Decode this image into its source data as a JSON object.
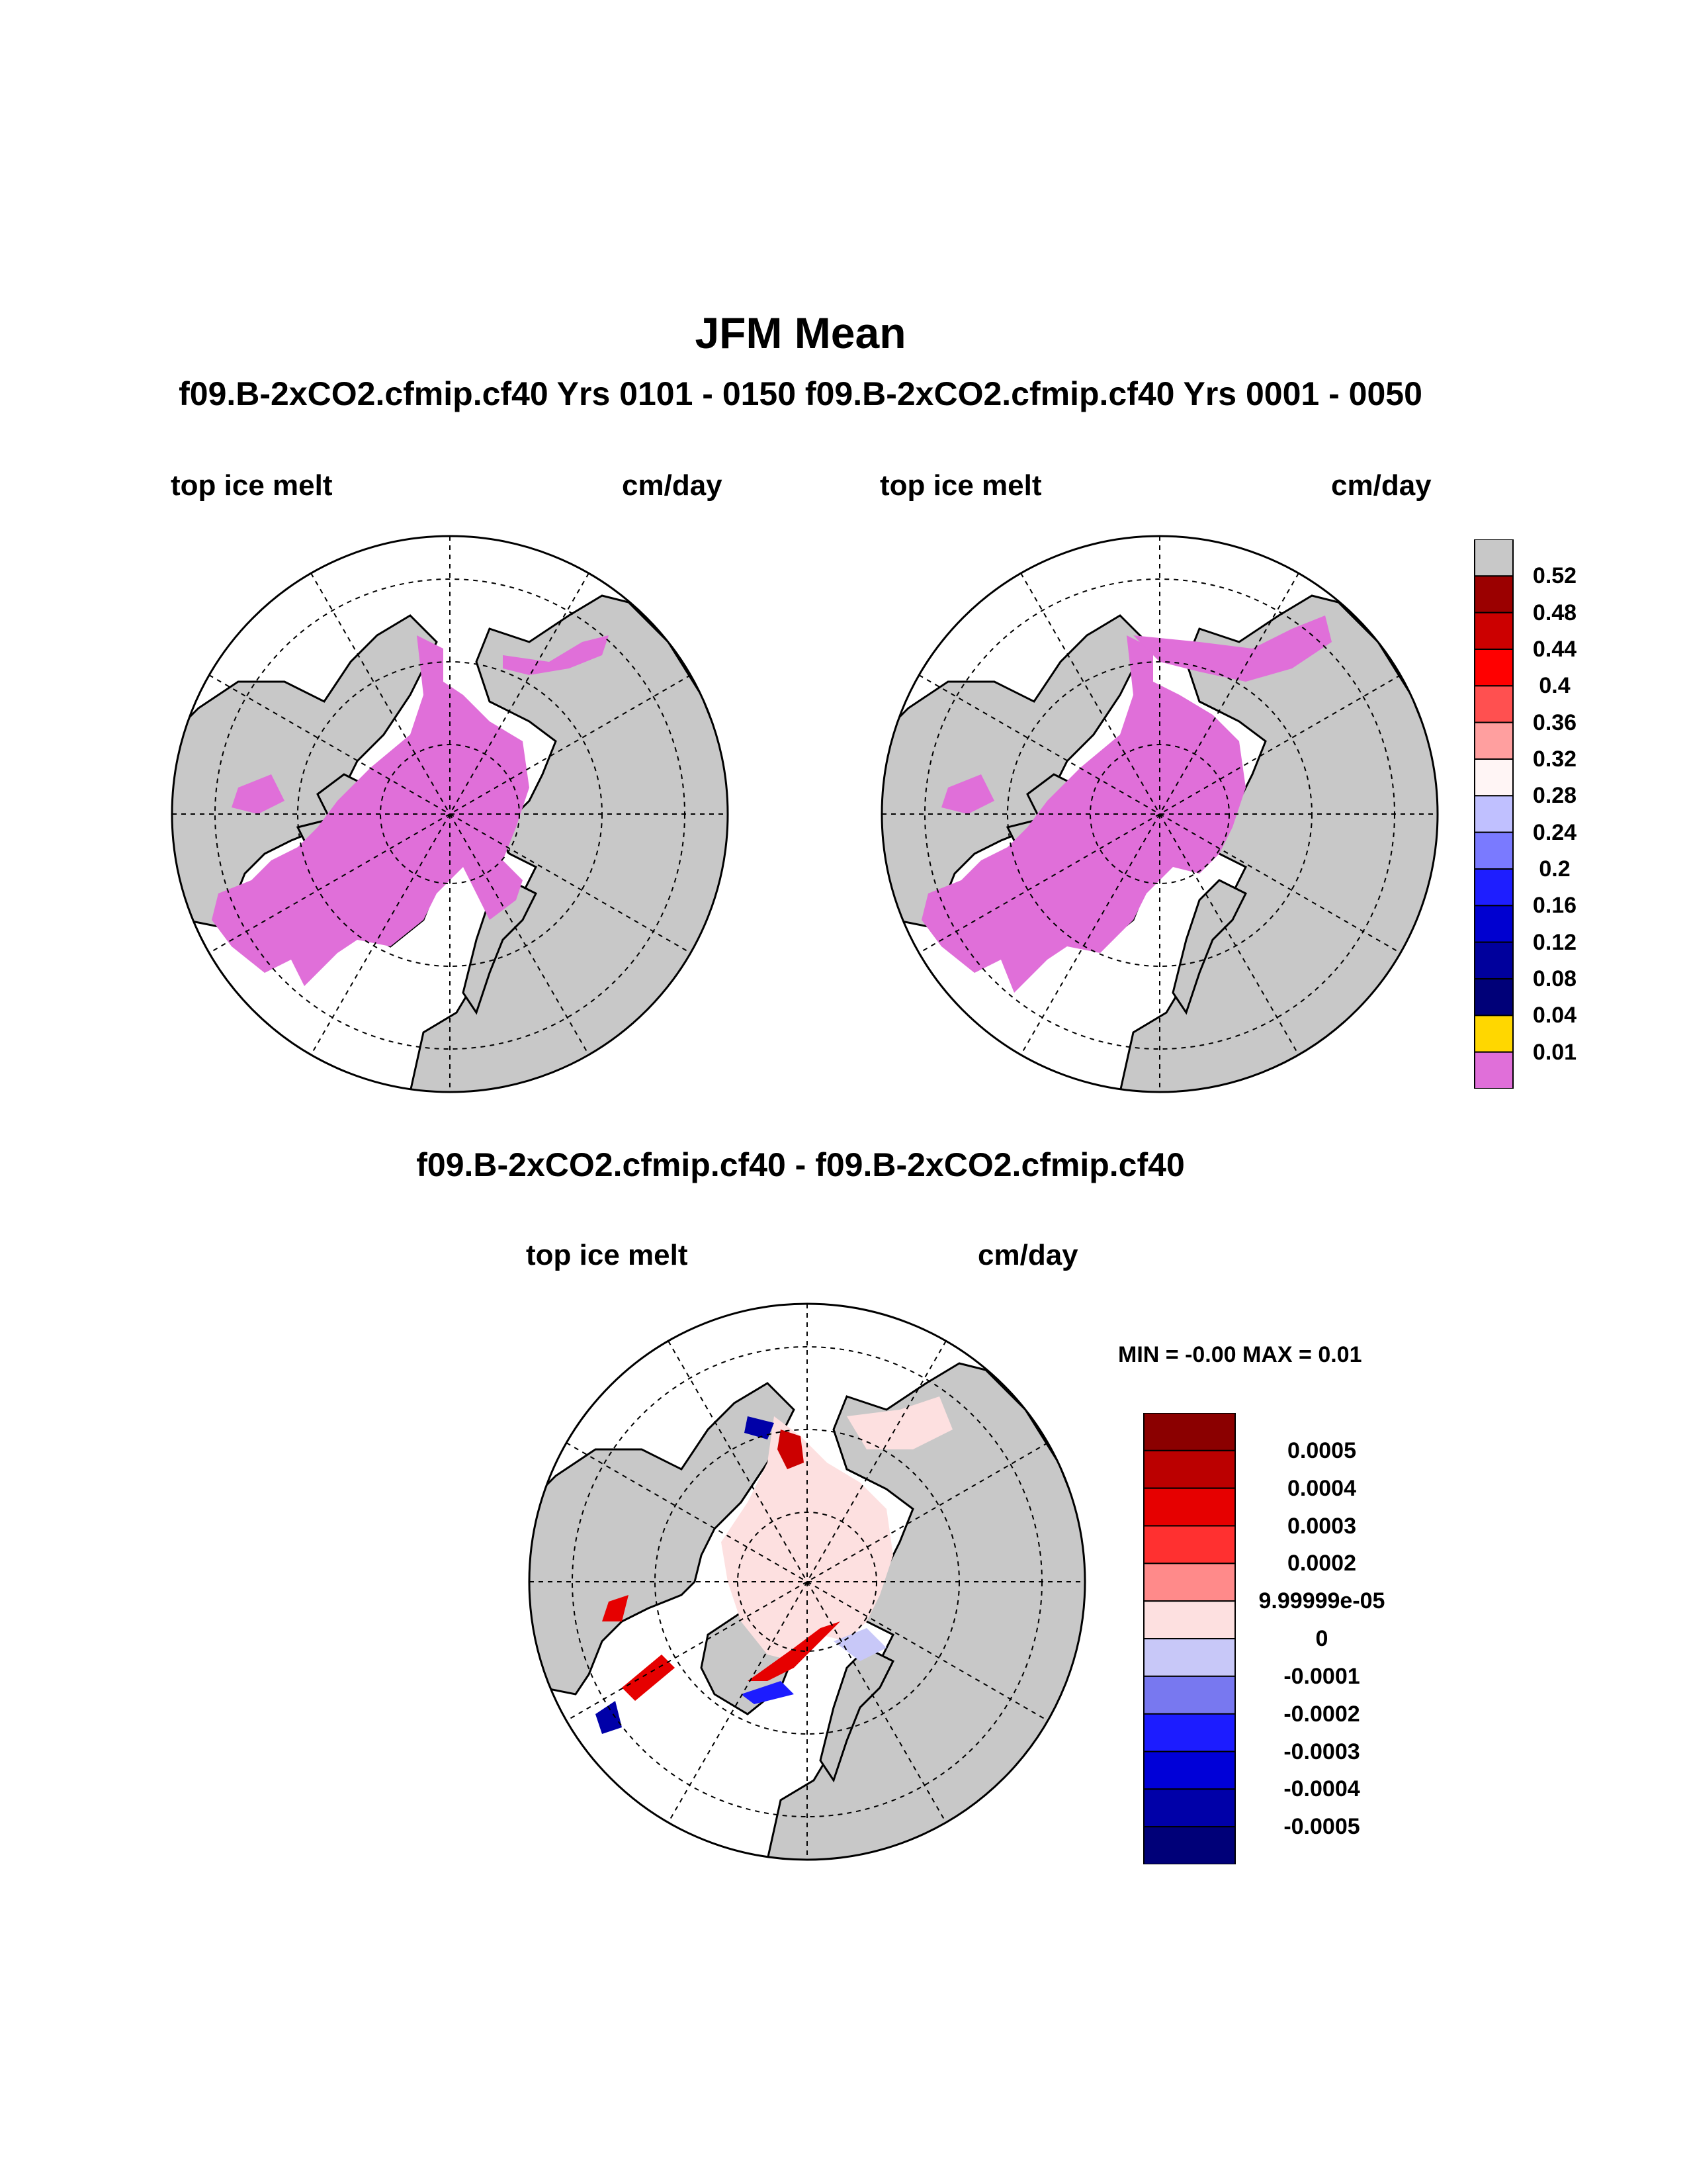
{
  "title": "JFM Mean",
  "subtitle": "f09.B-2xCO2.cfmip.cf40  Yrs 0101 - 0150 f09.B-2xCO2.cfmip.cf40  Yrs 0001 - 0050",
  "panels": [
    {
      "variable": "top ice melt",
      "units": "cm/day"
    },
    {
      "variable": "top ice melt",
      "units": "cm/day"
    }
  ],
  "diff": {
    "title": "f09.B-2xCO2.cfmip.cf40 - f09.B-2xCO2.cfmip.cf40",
    "variable": "top ice melt",
    "units": "cm/day",
    "minmax": "MIN =  -0.00 MAX =   0.01"
  },
  "colors": {
    "land": "#c8c8c8",
    "ice_melt": "#e06fd9",
    "ocean": "#ffffff",
    "diff_positive_light": "#fde0e0"
  },
  "chart_data": [
    {
      "type": "heatmap",
      "name": "top-colorbar",
      "labels": [
        "0.52",
        "0.48",
        "0.44",
        "0.4",
        "0.36",
        "0.32",
        "0.28",
        "0.24",
        "0.2",
        "0.16",
        "0.12",
        "0.08",
        "0.04",
        "0.01"
      ],
      "colors": [
        "#c8c8c8",
        "#9b0000",
        "#cc0000",
        "#ff0000",
        "#ff5050",
        "#ff9f9f",
        "#fff5f5",
        "#c0c0ff",
        "#7a7aff",
        "#1e1eff",
        "#0000d0",
        "#00009c",
        "#000078",
        "#ffd700",
        "#e06fd9"
      ]
    },
    {
      "type": "heatmap",
      "name": "diff-colorbar",
      "labels": [
        "0.0005",
        "0.0004",
        "0.0003",
        "0.0002",
        "9.99999e-05",
        "0",
        "-0.0001",
        "-0.0002",
        "-0.0003",
        "-0.0004",
        "-0.0005"
      ],
      "colors": [
        "#8b0000",
        "#bb0000",
        "#e60000",
        "#ff3030",
        "#ff8a8a",
        "#fde0e0",
        "#c8c8f8",
        "#7878f0",
        "#1c1cff",
        "#0000d8",
        "#0000a8",
        "#000078"
      ]
    }
  ]
}
